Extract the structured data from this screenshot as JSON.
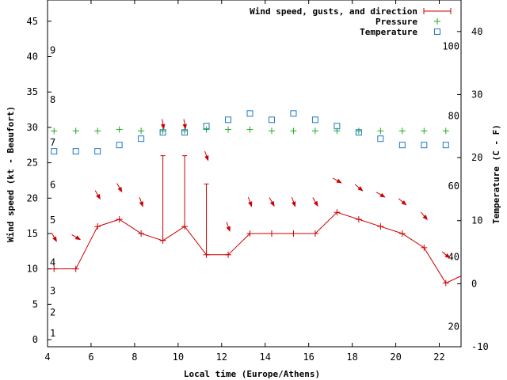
{
  "chart_data": {
    "type": "line",
    "xlabel": "Local time (Europe/Athens)",
    "ylabel_left": "Wind speed (kt - Beaufort)",
    "ylabel_right": "Temperature (C - F)",
    "xlim": [
      4,
      23
    ],
    "ylim_left": [
      -1,
      48
    ],
    "ylim_right": [
      -10,
      45
    ],
    "x_ticks": [
      4,
      6,
      8,
      10,
      12,
      14,
      16,
      18,
      20,
      22
    ],
    "y_left_ticks": [
      0,
      5,
      10,
      15,
      20,
      25,
      30,
      35,
      40,
      45
    ],
    "y_right_ticks": [
      -10,
      0,
      10,
      20,
      30,
      40
    ],
    "beaufort_labels": [
      {
        "label": "1",
        "kt": 1
      },
      {
        "label": "2",
        "kt": 4
      },
      {
        "label": "3",
        "kt": 7
      },
      {
        "label": "4",
        "kt": 11
      },
      {
        "label": "5",
        "kt": 17
      },
      {
        "label": "6",
        "kt": 22
      },
      {
        "label": "7",
        "kt": 28
      },
      {
        "label": "8",
        "kt": 34
      },
      {
        "label": "9",
        "kt": 41
      }
    ],
    "fahrenheit_labels": [
      {
        "label": "20",
        "celsius": -6.7
      },
      {
        "label": "40",
        "celsius": 4.4
      },
      {
        "label": "60",
        "celsius": 15.6
      },
      {
        "label": "80",
        "celsius": 26.7
      },
      {
        "label": "100",
        "celsius": 37.8
      }
    ],
    "legend": {
      "position": "top-right",
      "entries": [
        {
          "label": "Wind speed, gusts, and direction",
          "color": "#cc0000"
        },
        {
          "label": "Pressure",
          "color": "#22aa22"
        },
        {
          "label": "Temperature",
          "color": "#1e78c8"
        }
      ]
    },
    "series": [
      {
        "name": "Wind speed, gusts, and direction",
        "color": "#cc0000",
        "x": [
          4.3,
          5.3,
          6.3,
          7.3,
          8.3,
          9.3,
          10.3,
          11.3,
          12.3,
          13.3,
          14.3,
          15.3,
          16.3,
          17.3,
          18.3,
          19.3,
          20.3,
          21.3,
          22.3,
          23
        ],
        "values": [
          10,
          10,
          16,
          17,
          15,
          14,
          16,
          12,
          12,
          15,
          15,
          15,
          15,
          18,
          17,
          16,
          15,
          13,
          8,
          9
        ],
        "gusts": [
          null,
          null,
          null,
          null,
          null,
          26,
          26,
          22,
          null,
          null,
          null,
          null,
          null,
          null,
          null,
          null,
          null,
          null,
          null,
          null
        ],
        "direction_x": [
          4.3,
          5.3,
          6.3,
          7.3,
          8.3,
          9.3,
          10.3,
          11.3,
          12.3,
          13.3,
          14.3,
          15.3,
          16.3,
          17.3,
          18.3,
          19.3,
          20.3,
          21.3,
          22.3
        ],
        "direction_y": [
          14.5,
          14.5,
          20.5,
          21.5,
          19.5,
          30.5,
          30.5,
          26,
          16,
          19.5,
          19.5,
          19.5,
          19.5,
          22.5,
          21.5,
          20.5,
          19.5,
          17.5,
          12
        ],
        "direction_deg": [
          330,
          300,
          330,
          330,
          340,
          350,
          350,
          340,
          340,
          340,
          330,
          340,
          330,
          300,
          310,
          300,
          310,
          320,
          310
        ]
      },
      {
        "name": "Pressure",
        "color": "#22aa22",
        "x": [
          4.3,
          5.3,
          6.3,
          7.3,
          8.3,
          9.3,
          10.3,
          11.3,
          12.3,
          13.3,
          14.3,
          15.3,
          16.3,
          17.3,
          18.3,
          19.3,
          20.3,
          21.3,
          22.3
        ],
        "values": [
          29.5,
          29.5,
          29.5,
          29.7,
          29.5,
          29.5,
          29.5,
          29.7,
          29.7,
          29.7,
          29.5,
          29.5,
          29.5,
          29.5,
          29.5,
          29.5,
          29.5,
          29.5,
          29.5
        ]
      },
      {
        "name": "Temperature",
        "color": "#1e78c8",
        "axis": "right",
        "x": [
          4.3,
          5.3,
          6.3,
          7.3,
          8.3,
          9.3,
          10.3,
          11.3,
          12.3,
          13.3,
          14.3,
          15.3,
          16.3,
          17.3,
          18.3,
          19.3,
          20.3,
          21.3,
          22.3
        ],
        "values": [
          21,
          21,
          21,
          22,
          23,
          24,
          24,
          25,
          26,
          27,
          26,
          27,
          26,
          25,
          24,
          23,
          22,
          22,
          22
        ]
      }
    ]
  }
}
